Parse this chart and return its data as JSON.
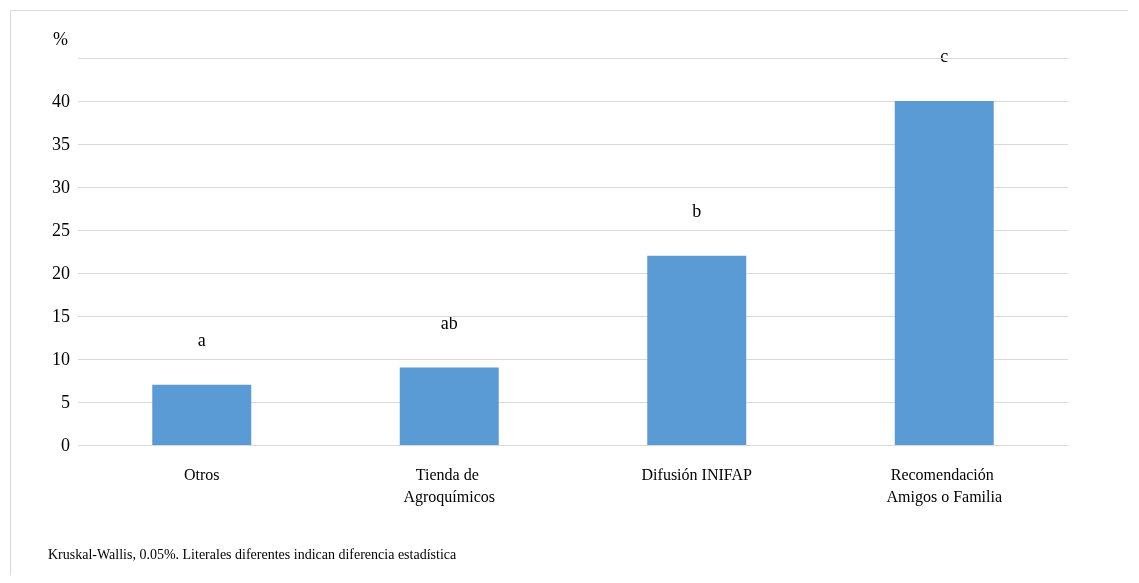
{
  "chart_data": {
    "type": "bar",
    "ylabel": "%",
    "categories": [
      "Otros",
      "Tienda de Agroquímicos",
      "Difusión INIFAP",
      "Recomendación Amigos o Familia"
    ],
    "values": [
      7,
      9,
      22,
      40
    ],
    "color": "#5b9bd5",
    "ylim": [
      0,
      45
    ],
    "yticks": [
      0,
      5,
      10,
      15,
      20,
      25,
      30,
      35,
      40,
      {
        "value": 45,
        "label": null
      }
    ],
    "grid": "y",
    "annotations": [
      "a",
      "ab",
      "b",
      "c",
      "Kruskal-Wallis, 0.05%. Literales diferentes indican diferencia estadística"
    ]
  }
}
